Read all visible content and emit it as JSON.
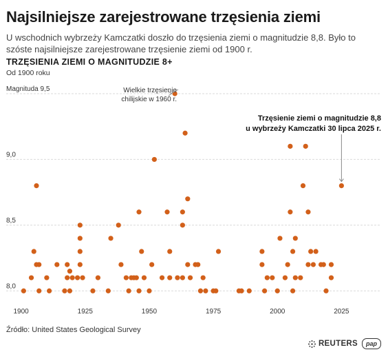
{
  "header": {
    "title": "Najsilniejsze zarejestrowane trzęsienia ziemi",
    "subtitle": "U wschodnich wybrzeży Kamczatki doszło do trzęsienia ziemi o magnitudzie 8,8. Było to szóste najsilniejsze zarejestrowane trzęsienie ziemi od 1900 r.",
    "section_title": "TRZĘSIENIA ZIEMI O MAGNITUDZIE 8+",
    "since": "Od 1900 roku"
  },
  "footer": {
    "source": "Źródło: United States Geological Survey",
    "brand": "REUTERS",
    "partner": "pap"
  },
  "colors": {
    "dot": "#d2601a",
    "grid": "#d9d9d9"
  },
  "icons": {
    "brand": "reuters-logo-icon",
    "partner": "pap-logo-icon"
  },
  "chart_data": {
    "type": "scatter",
    "xlabel": "",
    "ylabel": "Magnituda",
    "xlim": [
      1895,
      2041
    ],
    "ylim": [
      7.97,
      9.5
    ],
    "x_ticks": [
      "1900",
      "1925",
      "1950",
      "1975",
      "2000",
      "2025"
    ],
    "y_ticks": [
      "8,0",
      "8,5",
      "9,0",
      "9,5"
    ],
    "y_tick_label_top": "Magnituda 9,5",
    "grid": true,
    "annotations": [
      {
        "text": "Wielkie trzęsienie chilijskie w 1960 r.",
        "x": 1960,
        "y": 9.5
      },
      {
        "text": "Trzęsienie ziemi o magnitudzie 8,8 u wybrzeży Kamczatki 30 lipca 2025 r.",
        "x": 2025,
        "y": 8.8
      }
    ],
    "series": [
      {
        "values": [
          [
            1901,
            8.0
          ],
          [
            1904,
            8.1
          ],
          [
            1905,
            8.3
          ],
          [
            1906,
            8.8
          ],
          [
            1906,
            8.2
          ],
          [
            1907,
            8.2
          ],
          [
            1907,
            8.0
          ],
          [
            1910,
            8.1
          ],
          [
            1911,
            8.0
          ],
          [
            1914,
            8.2
          ],
          [
            1917,
            8.0
          ],
          [
            1918,
            8.2
          ],
          [
            1918,
            8.1
          ],
          [
            1919,
            8.15
          ],
          [
            1919,
            8.0
          ],
          [
            1920,
            8.1
          ],
          [
            1922,
            8.1
          ],
          [
            1923,
            8.2
          ],
          [
            1923,
            8.3
          ],
          [
            1923,
            8.5
          ],
          [
            1923,
            8.4
          ],
          [
            1924,
            8.1
          ],
          [
            1928,
            8.0
          ],
          [
            1930,
            8.1
          ],
          [
            1934,
            8.0
          ],
          [
            1935,
            8.4
          ],
          [
            1938,
            8.5
          ],
          [
            1939,
            8.2
          ],
          [
            1941,
            8.1
          ],
          [
            1942,
            8.0
          ],
          [
            1943,
            8.1
          ],
          [
            1944,
            8.1
          ],
          [
            1945,
            8.1
          ],
          [
            1946,
            8.0
          ],
          [
            1946,
            8.6
          ],
          [
            1947,
            8.3
          ],
          [
            1948,
            8.1
          ],
          [
            1950,
            8.0
          ],
          [
            1951,
            8.2
          ],
          [
            1952,
            9.0
          ],
          [
            1955,
            8.1
          ],
          [
            1957,
            8.6
          ],
          [
            1958,
            8.3
          ],
          [
            1958,
            8.1
          ],
          [
            1960,
            9.5
          ],
          [
            1961,
            8.1
          ],
          [
            1963,
            8.5
          ],
          [
            1963,
            8.6
          ],
          [
            1963,
            8.1
          ],
          [
            1964,
            9.2
          ],
          [
            1965,
            8.7
          ],
          [
            1965,
            8.2
          ],
          [
            1966,
            8.1
          ],
          [
            1968,
            8.2
          ],
          [
            1969,
            8.2
          ],
          [
            1970,
            8.0
          ],
          [
            1971,
            8.1
          ],
          [
            1972,
            8.0
          ],
          [
            1975,
            8.0
          ],
          [
            1976,
            8.0
          ],
          [
            1977,
            8.3
          ],
          [
            1985,
            8.0
          ],
          [
            1986,
            8.0
          ],
          [
            1989,
            8.0
          ],
          [
            1994,
            8.3
          ],
          [
            1994,
            8.2
          ],
          [
            1995,
            8.0
          ],
          [
            1996,
            8.1
          ],
          [
            1998,
            8.1
          ],
          [
            2000,
            8.0
          ],
          [
            2001,
            8.4
          ],
          [
            2003,
            8.1
          ],
          [
            2004,
            8.2
          ],
          [
            2005,
            8.6
          ],
          [
            2005,
            9.1
          ],
          [
            2006,
            8.3
          ],
          [
            2006,
            8.0
          ],
          [
            2007,
            8.1
          ],
          [
            2007,
            8.4
          ],
          [
            2009,
            8.1
          ],
          [
            2010,
            8.8
          ],
          [
            2011,
            9.1
          ],
          [
            2012,
            8.6
          ],
          [
            2012,
            8.2
          ],
          [
            2013,
            8.3
          ],
          [
            2014,
            8.2
          ],
          [
            2015,
            8.3
          ],
          [
            2017,
            8.2
          ],
          [
            2018,
            8.2
          ],
          [
            2019,
            8.0
          ],
          [
            2021,
            8.2
          ],
          [
            2021,
            8.1
          ],
          [
            2025,
            8.8
          ]
        ]
      }
    ]
  }
}
